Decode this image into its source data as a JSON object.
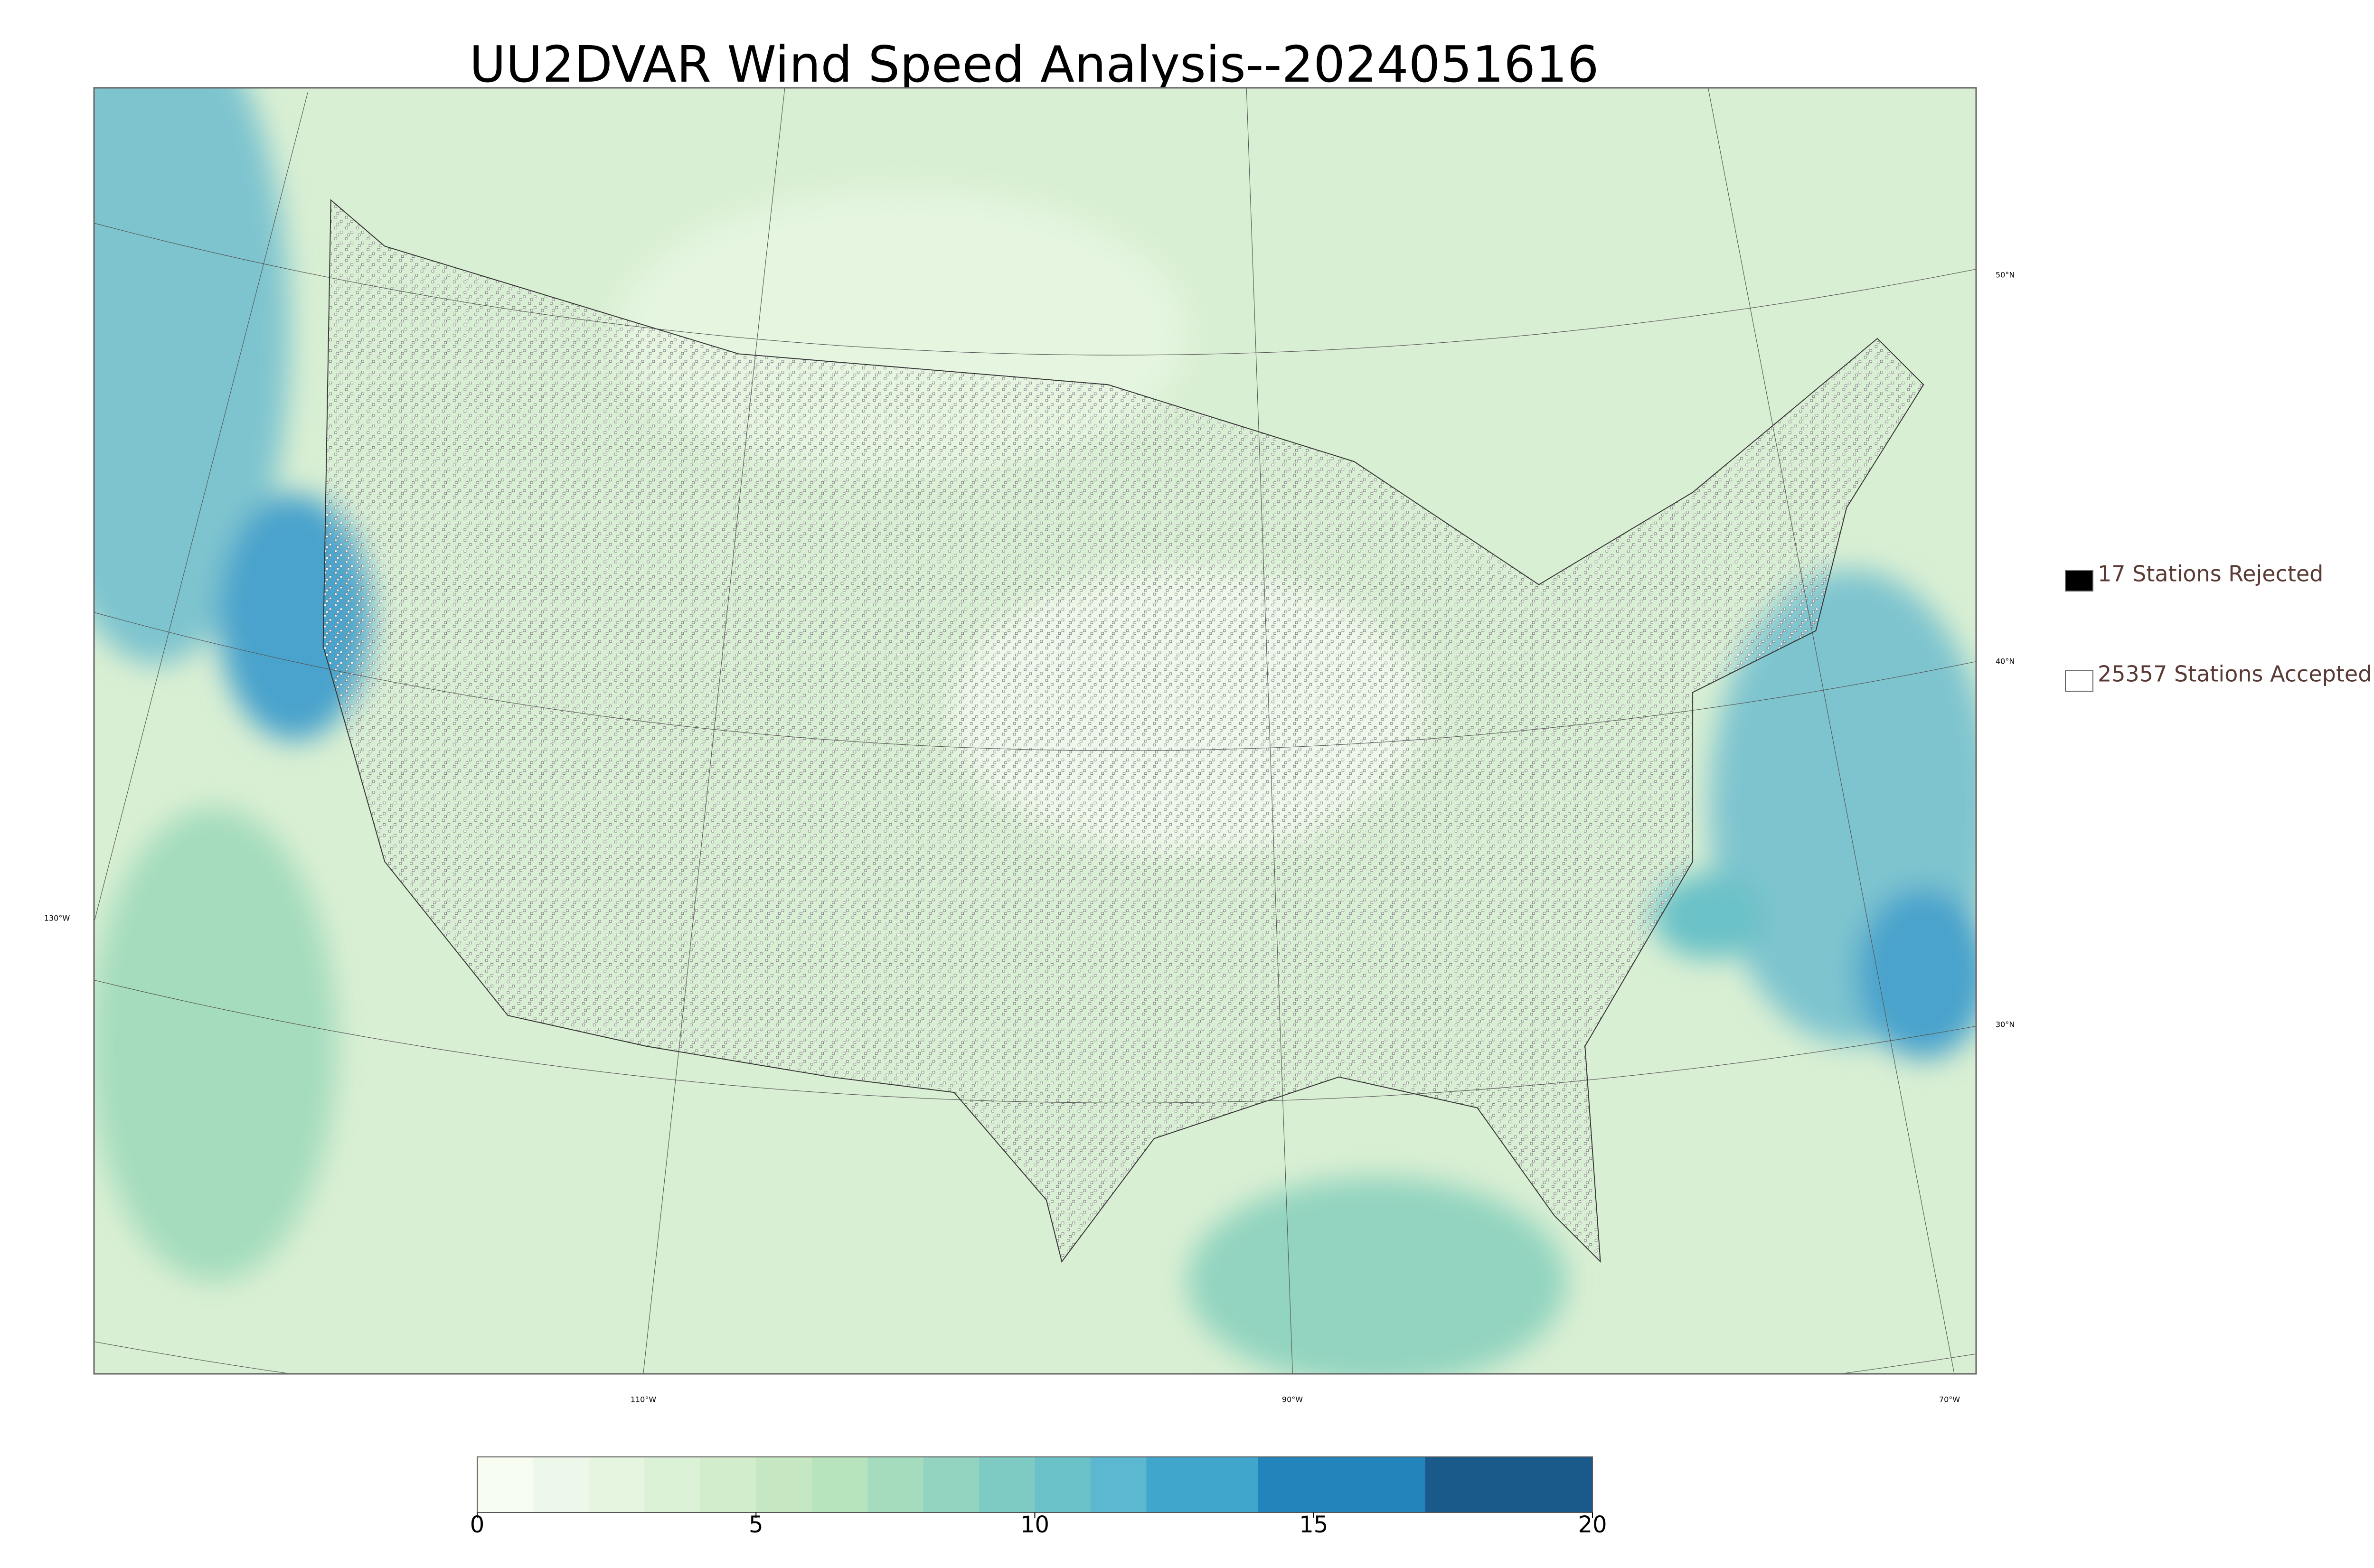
{
  "title": "UU2DVAR Wind Speed Analysis--2024051616",
  "legend": [
    {
      "label": "17 Stations Rejected",
      "color": "#000000"
    },
    {
      "label": "25357 Stations Accepted",
      "color": "#ffffff"
    }
  ],
  "graticule": {
    "latitudes": [
      "50°N",
      "40°N",
      "30°N"
    ],
    "longitudes": [
      "130°W",
      "110°W",
      "90°W",
      "70°W"
    ]
  },
  "colorbar": {
    "lim": [
      0,
      20
    ],
    "ticks": [
      0,
      5,
      10,
      15,
      20
    ],
    "levels": [
      0,
      1,
      2,
      3,
      4,
      5,
      6,
      7,
      8,
      9,
      10,
      11,
      12,
      14,
      17,
      20
    ],
    "colors": [
      "#f7fcf0",
      "#eef8ea",
      "#e5f5e0",
      "#dbf1d5",
      "#d1edcb",
      "#c5e8c2",
      "#b7e3bd",
      "#a5dcbe",
      "#92d4c0",
      "#7ecbc3",
      "#6ac1c7",
      "#5cb8d0",
      "#41a6cc",
      "#2383bb",
      "#1a5a8a"
    ]
  }
}
